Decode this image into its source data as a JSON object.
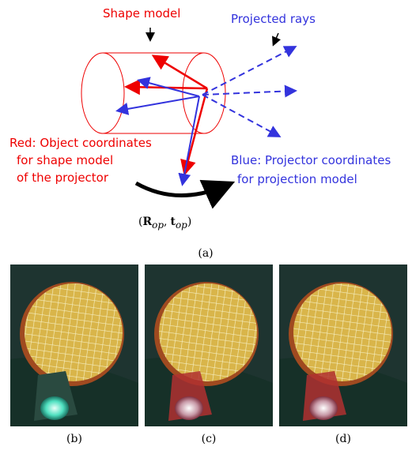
{
  "figure": {
    "diagram": {
      "shape_label": "Shape model",
      "rays_label": "Projected rays",
      "red_label": [
        "Red: Object coordinates",
        "for shape model",
        "of the projector"
      ],
      "blue_label": [
        "Blue: Projector coordinates",
        "for projection model"
      ],
      "equation": [
        "(",
        "R",
        "op",
        ",",
        "t",
        "op",
        ")"
      ]
    },
    "captions": [
      "(a)",
      "(b)",
      "(c)",
      "(d)"
    ]
  }
}
